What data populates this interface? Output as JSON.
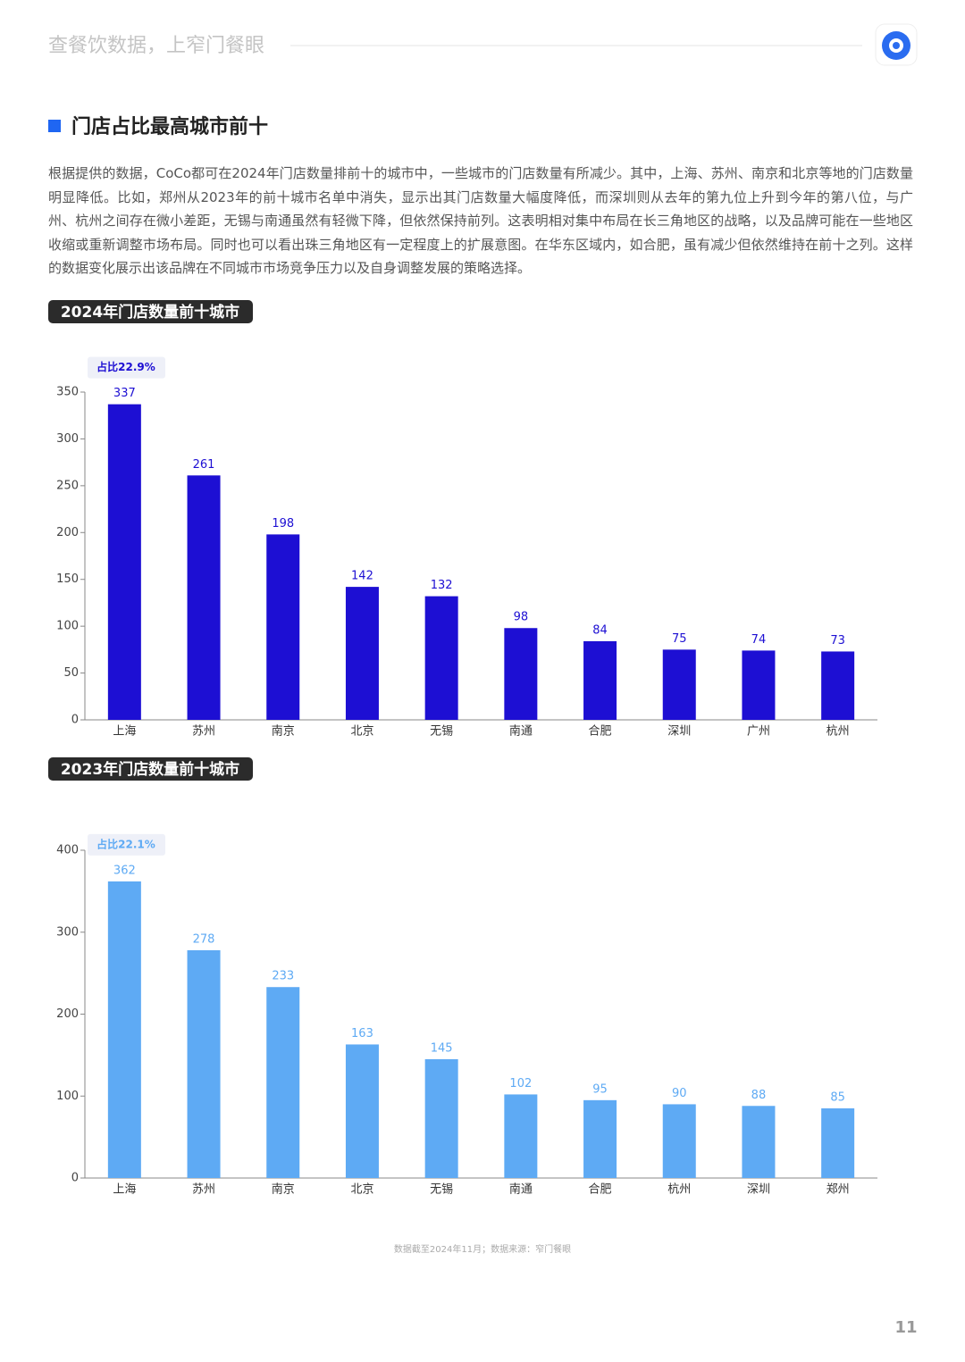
{
  "header": {
    "slogan": "查餐饮数据，上窄门餐眼"
  },
  "section_title": "门店占比最高城市前十",
  "paragraph": "根据提供的数据，CoCo都可在2024年门店数量排前十的城市中，一些城市的门店数量有所减少。其中，上海、苏州、南京和北京等地的门店数量明显降低。比如，郑州从2023年的前十城市名单中消失，显示出其门店数量大幅度降低，而深圳则从去年的第九位上升到今年的第八位，与广州、杭州之间存在微小差距，无锡与南通虽然有轻微下降，但依然保持前列。这表明相对集中布局在长三角地区的战略，以及品牌可能在一些地区收缩或重新调整市场布局。同时也可以看出珠三角地区有一定程度上的扩展意图。在华东区域内，如合肥，虽有减少但依然维持在前十之列。这样的数据变化展示出该品牌在不同城市市场竞争压力以及自身调整发展的策略选择。",
  "chart_data": [
    {
      "type": "bar",
      "title": "2024年门店数量前十城市",
      "annotation": "占比22.9%",
      "categories": [
        "上海",
        "苏州",
        "南京",
        "北京",
        "无锡",
        "南通",
        "合肥",
        "深圳",
        "广州",
        "杭州"
      ],
      "values": [
        337,
        261,
        198,
        142,
        132,
        98,
        84,
        75,
        74,
        73
      ],
      "color": "#1d0fd3",
      "ylim": [
        0,
        350
      ],
      "yticks": [
        0,
        50,
        100,
        150,
        200,
        250,
        300,
        350
      ]
    },
    {
      "type": "bar",
      "title": "2023年门店数量前十城市",
      "annotation": "占比22.1%",
      "categories": [
        "上海",
        "苏州",
        "南京",
        "北京",
        "无锡",
        "南通",
        "合肥",
        "杭州",
        "深圳",
        "郑州"
      ],
      "values": [
        362,
        278,
        233,
        163,
        145,
        102,
        95,
        90,
        88,
        85
      ],
      "color": "#5eaaf4",
      "ylim": [
        0,
        400
      ],
      "yticks": [
        0,
        100,
        200,
        300,
        400
      ]
    }
  ],
  "footer_note": "数据截至2024年11月；数据来源：窄门餐眼",
  "page_number": "11"
}
